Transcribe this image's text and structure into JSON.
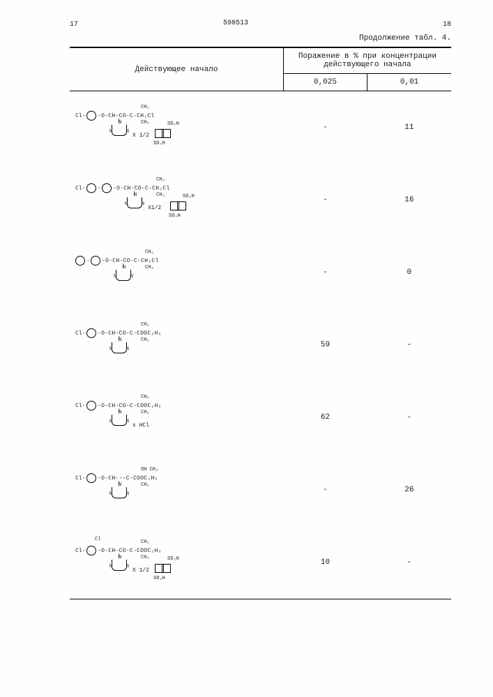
{
  "page_left": "17",
  "page_right": "18",
  "doc_id": "598513",
  "continuation": "Продолжение табл. 4.",
  "header": {
    "left": "Действующее начало",
    "right_top": "Поражение в % при концентрации действующего начала",
    "sub_left": "0,025",
    "sub_right": "0,01"
  },
  "rows": [
    {
      "structure": {
        "prefix": "Cl-",
        "biphenyl": false,
        "chain": "-O-CH-CO-C-CH₂Cl",
        "groups_top": "CH₃",
        "groups_bot": "CH₃",
        "salt": "X 1/2",
        "naph_top": "SO₃H",
        "naph_bot": "SO₃H"
      },
      "c1": "-",
      "c2": "11"
    },
    {
      "structure": {
        "prefix": "Cl-",
        "biphenyl": true,
        "chain": "-O-CH-CO-C-CH₂Cl",
        "groups_top": "CH₃",
        "groups_bot": "CH₃",
        "salt": "X1/2",
        "naph_top": "SO₃H",
        "naph_bot": "SO₃H"
      },
      "c1": "-",
      "c2": "16"
    },
    {
      "structure": {
        "prefix": "",
        "biphenyl": true,
        "chain": "-O-CH-CO-C-CH₂Cl",
        "groups_top": "CH₃",
        "groups_bot": "CH₃",
        "salt": "",
        "naph_top": "",
        "naph_bot": ""
      },
      "c1": "-",
      "c2": "0"
    },
    {
      "structure": {
        "prefix": "Cl-",
        "biphenyl": false,
        "chain": "-O-CH-CO-C-COOC₂H₅",
        "groups_top": "CH₃",
        "groups_bot": "CH₃",
        "salt": "",
        "naph_top": "",
        "naph_bot": ""
      },
      "c1": "59",
      "c2": "-"
    },
    {
      "structure": {
        "prefix": "Cl-",
        "biphenyl": false,
        "chain": "-O-CH-CO-C-COOC₂H₅",
        "groups_top": "CH₃",
        "groups_bot": "CH₃",
        "salt": "x HCl",
        "naph_top": "",
        "naph_bot": ""
      },
      "c1": "62",
      "c2": "-"
    },
    {
      "structure": {
        "prefix": "Cl-",
        "biphenyl": false,
        "chain": "-O-CH---C-COOC₂H₅",
        "groups_top": "OH   CH₃",
        "groups_bot": "CH₃",
        "salt": "",
        "naph_top": "",
        "naph_bot": ""
      },
      "c1": "-",
      "c2": "26"
    },
    {
      "structure": {
        "prefix": "Cl-",
        "ortho_cl": "Cl",
        "biphenyl": false,
        "chain": "-O-CH-CO-C-COOC₂H₅",
        "groups_top": "CH₃",
        "groups_bot": "CH₃",
        "salt": "X 1/2",
        "naph_top": "SO₃H",
        "naph_bot": "SO₃H"
      },
      "c1": "10",
      "c2": "-"
    }
  ]
}
